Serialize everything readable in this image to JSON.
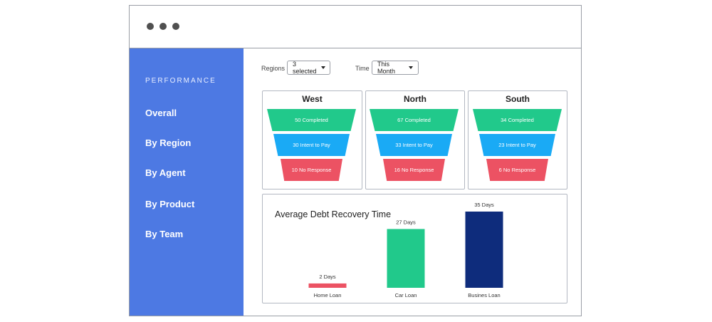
{
  "window": {
    "controls": [
      "close",
      "minimize",
      "maximize"
    ]
  },
  "sidebar": {
    "heading": "PERFORMANCE",
    "items": [
      {
        "label": "Overall"
      },
      {
        "label": "By Region"
      },
      {
        "label": "By Agent"
      },
      {
        "label": "By Product"
      },
      {
        "label": "By Team"
      }
    ]
  },
  "filters": {
    "regions_label": "Regions",
    "regions_value": "3 selected",
    "time_label": "Time",
    "time_value": "This Month"
  },
  "colors": {
    "completed": "#21c98b",
    "intent": "#1aaaf5",
    "no_response": "#ec5263",
    "bar_home": "#ec5263",
    "bar_car": "#21c98b",
    "bar_business": "#0e2c7c",
    "sidebar": "#4d79e3"
  },
  "funnels": [
    {
      "region": "West",
      "layers": [
        {
          "count": 50,
          "label": "50 Completed"
        },
        {
          "count": 30,
          "label": "30 Intent to Pay"
        },
        {
          "count": 10,
          "label": "10 No Response"
        }
      ]
    },
    {
      "region": "North",
      "layers": [
        {
          "count": 67,
          "label": "67 Completed"
        },
        {
          "count": 33,
          "label": "33 Intent to Pay"
        },
        {
          "count": 16,
          "label": "16 No Response"
        }
      ]
    },
    {
      "region": "South",
      "layers": [
        {
          "count": 34,
          "label": "34 Completed"
        },
        {
          "count": 23,
          "label": "23 Intent to Pay"
        },
        {
          "count": 6,
          "label": "6 No Response"
        }
      ]
    }
  ],
  "chart_data": {
    "type": "bar",
    "title": "Average Debt Recovery Time",
    "categories": [
      "Home Loan",
      "Car Loan",
      "Busines Loan"
    ],
    "values": [
      2,
      27,
      35
    ],
    "data_labels": [
      "2 Days",
      "27 Days",
      "35 Days"
    ],
    "ylim": [
      0,
      35
    ],
    "grid": false,
    "xlabel": "",
    "ylabel": ""
  }
}
